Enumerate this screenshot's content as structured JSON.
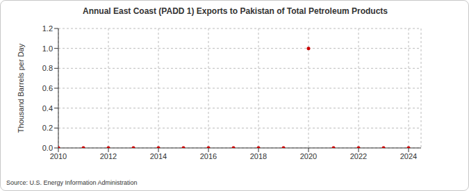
{
  "chart_data": {
    "type": "scatter",
    "title": "Annual East Coast (PADD 1) Exports to Pakistan of Total Petroleum Products",
    "y_label": "Thousand Barrels per Day",
    "source": "Source: U.S. Energy Information Administration",
    "x": [
      2010,
      2011,
      2012,
      2013,
      2014,
      2015,
      2016,
      2017,
      2018,
      2019,
      2020,
      2021,
      2022,
      2023,
      2024
    ],
    "values": [
      0,
      0,
      0,
      0,
      0,
      0,
      0,
      0,
      0,
      0,
      1,
      0,
      0,
      0,
      0
    ],
    "color": "#cc0000",
    "marker": "circle",
    "xlim": [
      2010,
      2024.5
    ],
    "xticks": [
      2010,
      2012,
      2014,
      2016,
      2018,
      2020,
      2022,
      2024
    ],
    "ylim": [
      0,
      1.2
    ],
    "yticks": [
      {
        "value": 0,
        "label": "0.0"
      },
      {
        "value": 0.2,
        "label": "0.2"
      },
      {
        "value": 0.4,
        "label": "0.4"
      },
      {
        "value": 0.6,
        "label": "0.6"
      },
      {
        "value": 0.8,
        "label": "0.8"
      },
      {
        "value": 1,
        "label": "1.0"
      },
      {
        "value": 1.2,
        "label": "1.2"
      }
    ],
    "grid": true
  }
}
